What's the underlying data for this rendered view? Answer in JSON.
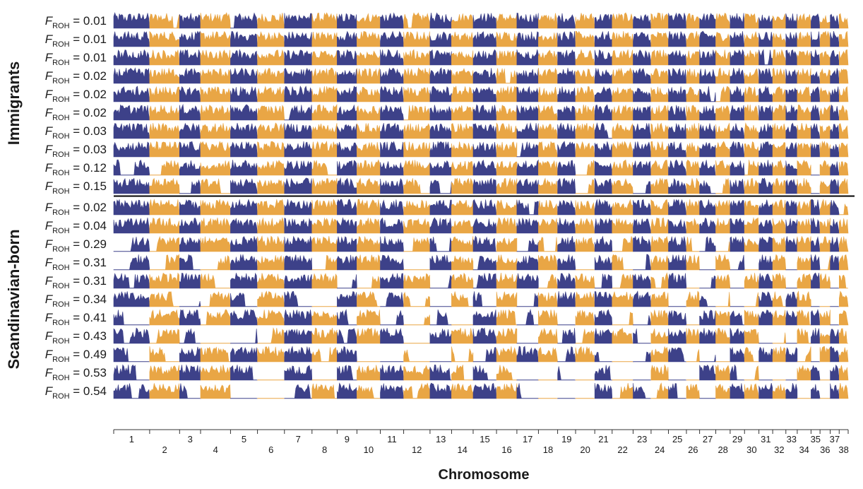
{
  "chart_data": {
    "type": "area",
    "xlabel": "Chromosome",
    "row_label_prefix": "F",
    "row_label_subscript": "ROH",
    "row_label_sep": " = ",
    "colors": {
      "odd": "#3d4189",
      "even": "#e9a645",
      "divider": "#000000",
      "axis": "#333333"
    },
    "chromosomes": [
      "1",
      "2",
      "3",
      "4",
      "5",
      "6",
      "7",
      "8",
      "9",
      "10",
      "11",
      "12",
      "13",
      "14",
      "15",
      "16",
      "17",
      "18",
      "19",
      "20",
      "21",
      "22",
      "23",
      "24",
      "25",
      "26",
      "27",
      "28",
      "29",
      "30",
      "31",
      "32",
      "33",
      "34",
      "35",
      "36",
      "37",
      "38"
    ],
    "chromosome_lengths": [
      6,
      5,
      3.5,
      5,
      4.5,
      4.5,
      4.6,
      4.2,
      3.3,
      3.9,
      3.9,
      4.4,
      3.6,
      3.6,
      3.9,
      3.4,
      3.6,
      3.2,
      3.0,
      3.2,
      2.9,
      3.5,
      3.0,
      2.9,
      3.0,
      2.2,
      2.7,
      2.4,
      2.4,
      2.4,
      2.3,
      2.2,
      1.9,
      2.3,
      1.5,
      1.7,
      1.5,
      1.5
    ],
    "groups": [
      {
        "name": "Immigrants",
        "froh": [
          "0.01",
          "0.01",
          "0.01",
          "0.02",
          "0.02",
          "0.02",
          "0.03",
          "0.03",
          "0.12",
          "0.15"
        ]
      },
      {
        "name": "Scandinavian-born",
        "froh": [
          "0.02",
          "0.04",
          "0.29",
          "0.31",
          "0.31",
          "0.34",
          "0.41",
          "0.43",
          "0.49",
          "0.53",
          "0.54"
        ]
      }
    ]
  }
}
